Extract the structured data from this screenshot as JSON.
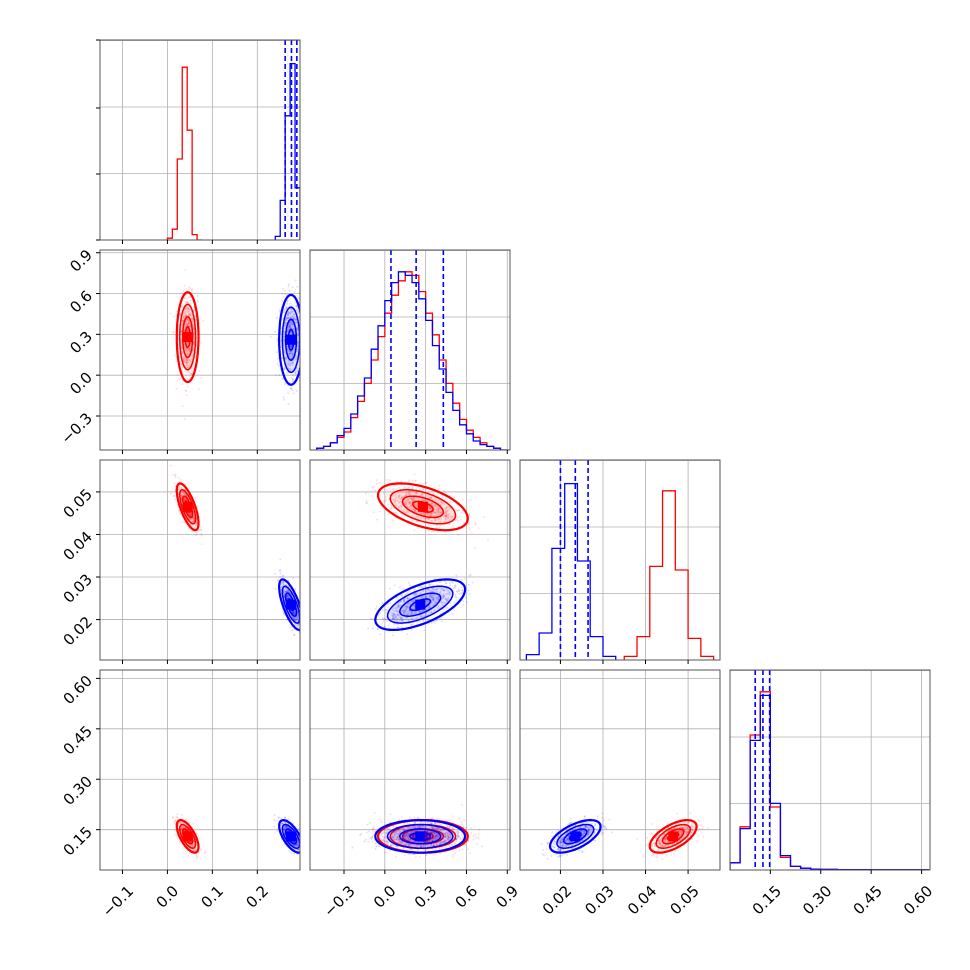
{
  "chart_data": {
    "type": "corner",
    "colors": {
      "series_a": "#ff0000",
      "series_b": "#0000ff"
    },
    "parameters": [
      {
        "range": [
          -0.15,
          0.295
        ],
        "ticks": [
          -0.1,
          0.0,
          0.1,
          0.2
        ],
        "tick_labels": [
          "−0.1",
          "0.0",
          "0.1",
          "0.2"
        ]
      },
      {
        "range": [
          -0.55,
          0.92
        ],
        "ticks": [
          -0.3,
          0.0,
          0.3,
          0.6,
          0.9
        ],
        "tick_labels": [
          "−0.3",
          "0.0",
          "0.3",
          "0.6",
          "0.9"
        ]
      },
      {
        "range": [
          0.0105,
          0.0575
        ],
        "ticks": [
          0.02,
          0.03,
          0.04,
          0.05
        ],
        "tick_labels": [
          "0.02",
          "0.03",
          "0.04",
          "0.05"
        ]
      },
      {
        "range": [
          0.03,
          0.625
        ],
        "ticks": [
          0.15,
          0.3,
          0.45,
          0.6
        ],
        "tick_labels": [
          "0.15",
          "0.30",
          "0.45",
          "0.60"
        ]
      }
    ],
    "series": [
      {
        "color": "#ff0000",
        "means": [
          0.045,
          0.28,
          0.0465,
          0.13
        ],
        "sds": [
          0.011,
          0.15,
          0.0025,
          0.022
        ],
        "hist": [
          {
            "edges": [
              0.0,
              0.011,
              0.022,
              0.033,
              0.044,
              0.055,
              0.066,
              0.077
            ],
            "counts": [
              0.01,
              0.06,
              0.45,
              0.96,
              0.61,
              0.03,
              0.0
            ]
          },
          {
            "edges": [
              -0.5,
              -0.45,
              -0.4,
              -0.35,
              -0.3,
              -0.25,
              -0.2,
              -0.15,
              -0.1,
              -0.05,
              0.0,
              0.05,
              0.1,
              0.15,
              0.2,
              0.25,
              0.3,
              0.35,
              0.4,
              0.45,
              0.5,
              0.55,
              0.6,
              0.65,
              0.7,
              0.75,
              0.8,
              0.85,
              0.9
            ],
            "counts": [
              0.01,
              0.02,
              0.04,
              0.07,
              0.1,
              0.18,
              0.27,
              0.37,
              0.5,
              0.63,
              0.76,
              0.86,
              0.94,
              0.99,
              0.97,
              0.88,
              0.76,
              0.64,
              0.5,
              0.37,
              0.26,
              0.17,
              0.11,
              0.07,
              0.04,
              0.02,
              0.01,
              0.0
            ]
          },
          {
            "edges": [
              0.035,
              0.038,
              0.041,
              0.044,
              0.047,
              0.05,
              0.053,
              0.056
            ],
            "counts": [
              0.02,
              0.13,
              0.52,
              0.94,
              0.5,
              0.12,
              0.02
            ]
          },
          {
            "edges": [
              0.03,
              0.06,
              0.09,
              0.12,
              0.15,
              0.18,
              0.21,
              0.24,
              0.27,
              0.3,
              0.35,
              0.45,
              0.55,
              0.62
            ],
            "counts": [
              0.04,
              0.24,
              0.75,
              0.99,
              0.35,
              0.07,
              0.02,
              0.01,
              0.005,
              0.003,
              0.002,
              0.001,
              0.001
            ]
          }
        ]
      },
      {
        "color": "#0000ff",
        "means": [
          0.275,
          0.26,
          0.0235,
          0.13
        ],
        "sds": [
          0.012,
          0.15,
          0.0027,
          0.022
        ],
        "quantiles": [
          [
            0.262,
            0.276,
            0.288
          ],
          [
            0.045,
            0.23,
            0.43
          ],
          [
            0.02,
            0.0235,
            0.0265
          ],
          [
            0.105,
            0.128,
            0.148
          ]
        ],
        "hist": [
          {
            "edges": [
              0.24,
              0.251,
              0.262,
              0.273,
              0.284,
              0.295
            ],
            "counts": [
              0.02,
              0.22,
              0.69,
              0.98,
              0.29
            ]
          },
          {
            "edges": [
              -0.5,
              -0.45,
              -0.4,
              -0.35,
              -0.3,
              -0.25,
              -0.2,
              -0.15,
              -0.1,
              -0.05,
              0.0,
              0.05,
              0.1,
              0.15,
              0.2,
              0.25,
              0.3,
              0.35,
              0.4,
              0.45,
              0.5,
              0.55,
              0.6,
              0.65,
              0.7,
              0.75,
              0.8,
              0.85,
              0.9
            ],
            "counts": [
              0.01,
              0.02,
              0.04,
              0.08,
              0.12,
              0.2,
              0.3,
              0.4,
              0.56,
              0.69,
              0.83,
              0.93,
              0.99,
              0.97,
              0.93,
              0.84,
              0.72,
              0.58,
              0.45,
              0.32,
              0.22,
              0.14,
              0.09,
              0.05,
              0.03,
              0.02,
              0.01,
              0.0
            ]
          },
          {
            "edges": [
              0.012,
              0.015,
              0.018,
              0.021,
              0.024,
              0.027,
              0.03,
              0.033
            ],
            "counts": [
              0.03,
              0.15,
              0.62,
              0.98,
              0.55,
              0.13,
              0.02
            ]
          },
          {
            "edges": [
              0.03,
              0.06,
              0.09,
              0.12,
              0.15,
              0.18,
              0.21,
              0.24,
              0.27,
              0.3,
              0.35,
              0.45,
              0.55,
              0.62
            ],
            "counts": [
              0.04,
              0.23,
              0.72,
              0.97,
              0.37,
              0.08,
              0.02,
              0.01,
              0.005,
              0.003,
              0.002,
              0.001,
              0.001
            ]
          }
        ]
      }
    ],
    "correlations": {
      "0-1": 0.0,
      "0-2": -0.7,
      "0-3": -0.65,
      "1-2": 0.6,
      "1-3": 0.0,
      "2-3": 0.6
    },
    "correlations_by_series": {
      "0": {
        "1-2": -0.5
      },
      "1": {
        "1-2": 0.6
      }
    },
    "grid": true,
    "legend": "none"
  }
}
